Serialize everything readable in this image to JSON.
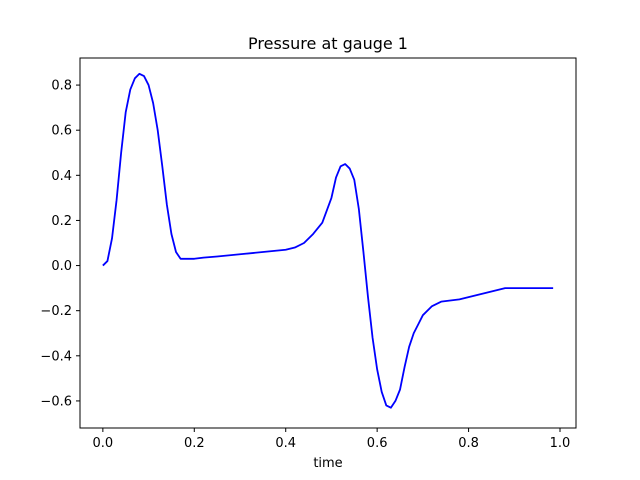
{
  "chart_data": {
    "type": "line",
    "title": "Pressure at gauge 1",
    "xlabel": "time",
    "ylabel": "",
    "xlim": [
      -0.05,
      1.035
    ],
    "ylim": [
      -0.72,
      0.92
    ],
    "xticks": [
      0.0,
      0.2,
      0.4,
      0.6,
      0.8,
      1.0
    ],
    "xtick_labels": [
      "0.0",
      "0.2",
      "0.4",
      "0.6",
      "0.8",
      "1.0"
    ],
    "yticks": [
      -0.6,
      -0.4,
      -0.2,
      0.0,
      0.2,
      0.4,
      0.6,
      0.8
    ],
    "ytick_labels": [
      "−0.6",
      "−0.4",
      "−0.2",
      "0.0",
      "0.2",
      "0.4",
      "0.6",
      "0.8"
    ],
    "grid": false,
    "series": [
      {
        "color": "#0000ff",
        "x": [
          0.0,
          0.01,
          0.02,
          0.03,
          0.04,
          0.05,
          0.06,
          0.07,
          0.08,
          0.09,
          0.1,
          0.11,
          0.12,
          0.13,
          0.14,
          0.15,
          0.16,
          0.17,
          0.18,
          0.19,
          0.2,
          0.22,
          0.25,
          0.3,
          0.35,
          0.4,
          0.42,
          0.44,
          0.46,
          0.48,
          0.5,
          0.51,
          0.52,
          0.53,
          0.54,
          0.55,
          0.56,
          0.57,
          0.58,
          0.59,
          0.6,
          0.61,
          0.62,
          0.63,
          0.64,
          0.65,
          0.66,
          0.67,
          0.68,
          0.69,
          0.7,
          0.72,
          0.74,
          0.76,
          0.78,
          0.8,
          0.84,
          0.88,
          0.92,
          0.95,
          0.985
        ],
        "y": [
          0.0,
          0.02,
          0.12,
          0.29,
          0.5,
          0.68,
          0.78,
          0.83,
          0.85,
          0.84,
          0.8,
          0.72,
          0.6,
          0.44,
          0.27,
          0.14,
          0.06,
          0.03,
          0.03,
          0.03,
          0.03,
          0.035,
          0.04,
          0.05,
          0.06,
          0.07,
          0.08,
          0.1,
          0.14,
          0.19,
          0.3,
          0.39,
          0.44,
          0.45,
          0.43,
          0.38,
          0.25,
          0.06,
          -0.14,
          -0.32,
          -0.46,
          -0.56,
          -0.62,
          -0.63,
          -0.6,
          -0.55,
          -0.45,
          -0.36,
          -0.3,
          -0.26,
          -0.22,
          -0.18,
          -0.16,
          -0.155,
          -0.15,
          -0.14,
          -0.12,
          -0.1,
          -0.1,
          -0.1,
          -0.1
        ]
      }
    ]
  }
}
